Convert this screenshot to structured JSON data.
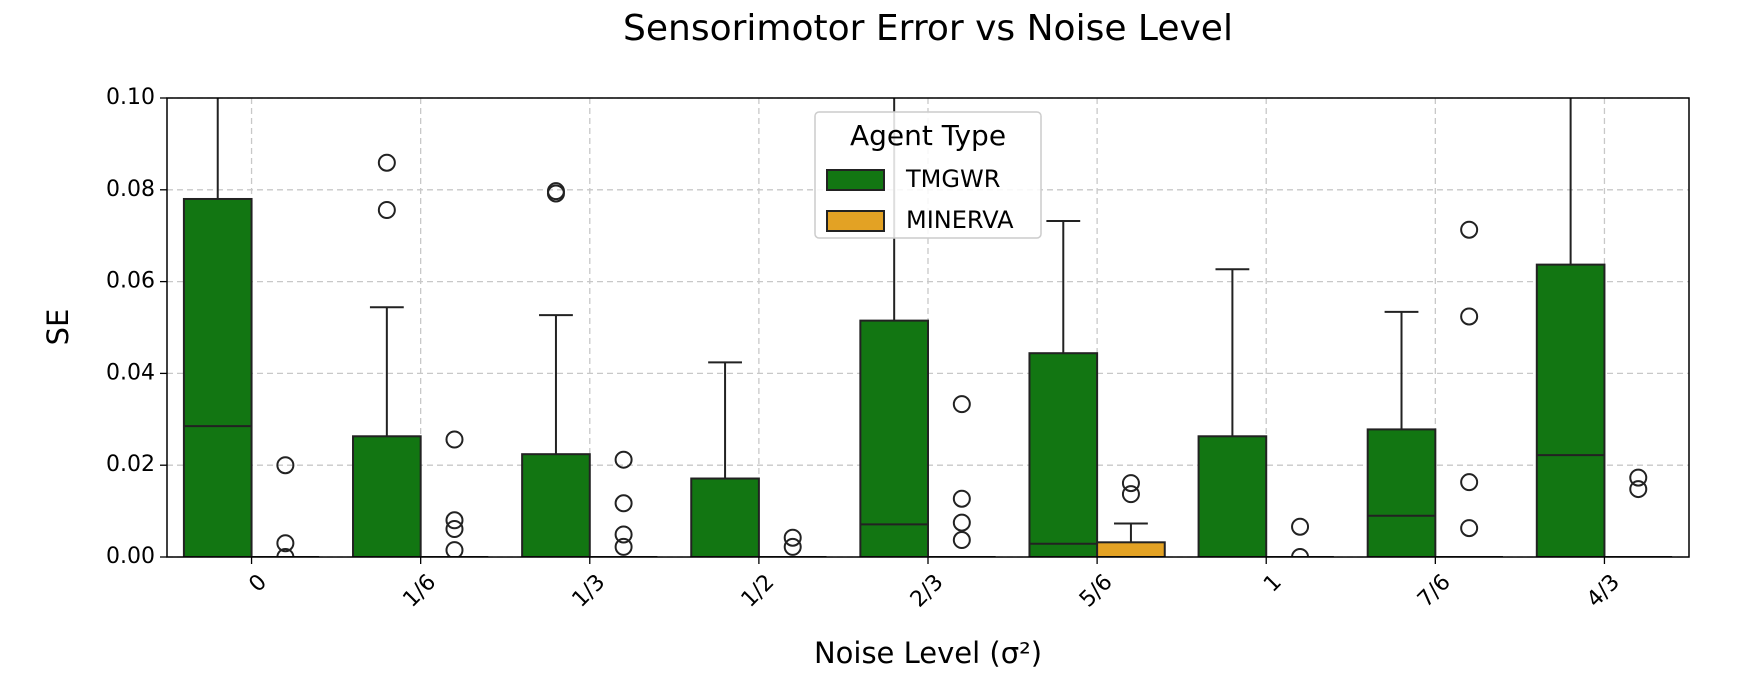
{
  "chart_data": {
    "type": "box",
    "title": "Sensorimotor Error vs Noise Level",
    "x_label": "Noise Level (σ²)",
    "y_label": "SE",
    "legend_title": "Agent Type",
    "legend_loc": "upper center",
    "grid": true,
    "categories": [
      "0",
      "1/6",
      "1/3",
      "1/2",
      "2/3",
      "5/6",
      "1",
      "7/6",
      "4/3"
    ],
    "ylim": [
      0,
      0.1
    ],
    "yticks": [
      {
        "value": 0,
        "label": "0.00"
      },
      {
        "value": 0.02,
        "label": "0.02"
      },
      {
        "value": 0.04,
        "label": "0.04"
      },
      {
        "value": 0.06,
        "label": "0.06"
      },
      {
        "value": 0.08,
        "label": "0.08"
      },
      {
        "value": 0.1,
        "label": "0.10"
      }
    ],
    "series": [
      {
        "name": "TMGWR",
        "color": "#127612",
        "whislo": [
          0,
          0,
          0,
          0,
          0,
          0,
          0,
          0,
          0
        ],
        "q1": [
          0,
          0,
          0,
          0,
          0,
          0,
          0,
          0,
          0
        ],
        "median": [
          0.0285,
          0,
          0,
          0,
          0.0071,
          0.0029,
          0,
          0.009,
          0.0222
        ],
        "q3": [
          0.078,
          0.0263,
          0.0224,
          0.0171,
          0.0515,
          0.0444,
          0.0263,
          0.0278,
          0.0637
        ],
        "whishi": [
          0.12,
          0.0544,
          0.0527,
          0.0424,
          0.12,
          0.0732,
          0.0627,
          0.0534,
          0.12
        ],
        "outliers": [
          [],
          [
            0.0859,
            0.0756
          ],
          [
            0.0797,
            0.0792
          ],
          [],
          [],
          [],
          [],
          [],
          []
        ]
      },
      {
        "name": "MINERVA",
        "color": "#e3a224",
        "whislo": [
          0,
          0,
          0,
          0,
          0,
          0,
          0,
          0,
          0
        ],
        "q1": [
          0,
          0,
          0,
          0,
          0,
          0,
          0,
          0,
          0
        ],
        "median": [
          0,
          0,
          0,
          0,
          0,
          0,
          0,
          0,
          0
        ],
        "q3": [
          0,
          0,
          0,
          0,
          0,
          0.0032,
          0,
          0,
          0
        ],
        "whishi": [
          0,
          0,
          0,
          0,
          0,
          0.0073,
          0,
          0,
          0
        ],
        "outliers": [
          [
            0.02,
            0.003,
            0
          ],
          [
            0.0256,
            0.008,
            0.0061,
            0.0015
          ],
          [
            0.0212,
            0.0117,
            0.0049,
            0.0022
          ],
          [
            0.0042,
            0.0022
          ],
          [
            0.0333,
            0.0127,
            0.0075,
            0.0037
          ],
          [
            0.0161,
            0.0137
          ],
          [
            0.0066,
            0
          ],
          [
            0.0713,
            0.0524,
            0.0163,
            0.0063
          ],
          [
            0.0173,
            0.0148
          ]
        ]
      }
    ]
  }
}
